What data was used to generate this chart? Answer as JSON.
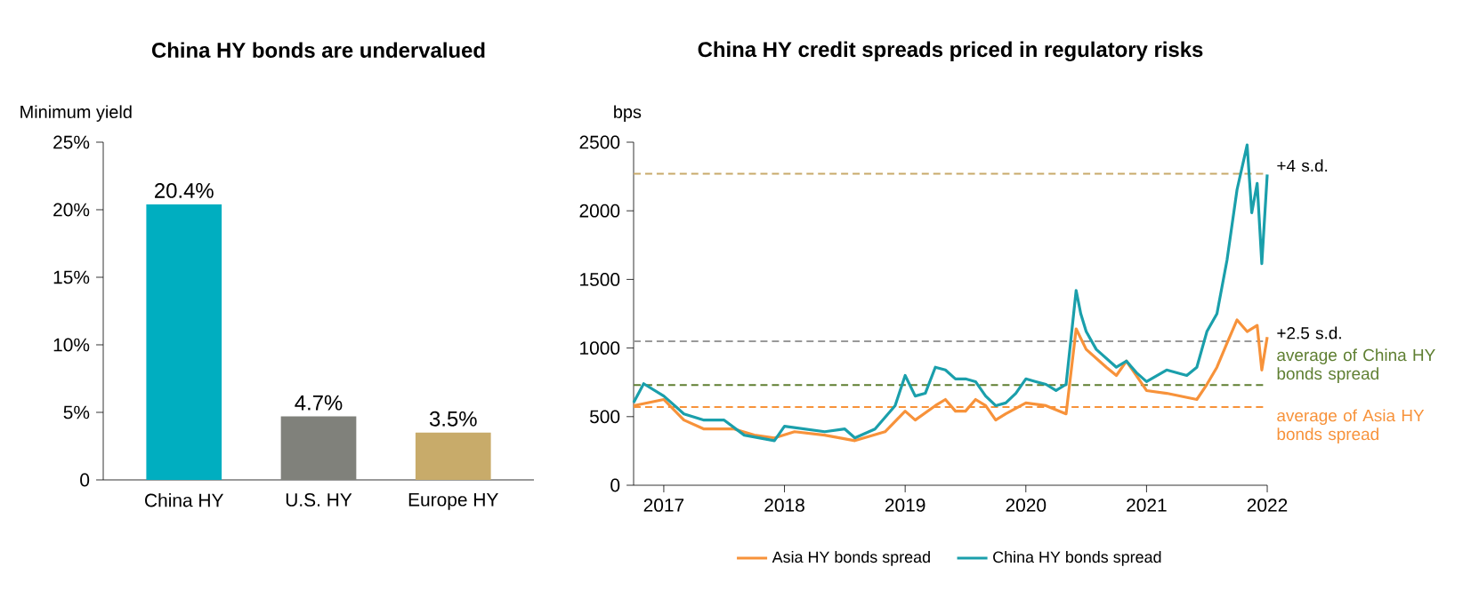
{
  "chart_data": [
    {
      "type": "bar",
      "title": "China HY bonds are undervalued",
      "ylabel": "Minimum yield",
      "categories": [
        "China HY",
        "U.S. HY",
        "Europe HY"
      ],
      "values": [
        20.4,
        4.7,
        3.5
      ],
      "colors": [
        "#00aec0",
        "#80817b",
        "#c8ab6a"
      ],
      "value_labels": [
        "20.4%",
        "4.7%",
        "3.5%"
      ],
      "ylim": [
        0,
        25
      ],
      "yticks": [
        0,
        {
          "value": 5,
          "label": "5%"
        },
        {
          "value": 10,
          "label": "10%"
        },
        {
          "value": 15,
          "label": "15%"
        },
        {
          "value": 20,
          "label": "20%"
        },
        {
          "value": 25,
          "label": "25%"
        }
      ]
    },
    {
      "type": "line",
      "title": "China HY credit spreads priced in regulatory risks",
      "ylabel": "bps",
      "xlim": [
        "2016-10",
        "2022-01"
      ],
      "xticks": [
        "2017",
        "2018",
        "2019",
        "2020",
        "2021",
        "2022"
      ],
      "ylim": [
        0,
        2500
      ],
      "yticks": [
        0,
        500,
        1000,
        1500,
        2000,
        2500
      ],
      "legend": "bottom",
      "series": [
        {
          "name": "Asia HY bonds spread",
          "color": "#f7923a",
          "x": [
            "2016-10",
            "2017-01",
            "2017-03",
            "2017-05",
            "2017-08",
            "2017-10",
            "2017-12",
            "2018-02",
            "2018-05",
            "2018-08",
            "2018-11",
            "2019-01",
            "2019-02",
            "2019-04",
            "2019-05",
            "2019-06",
            "2019-07",
            "2019-08",
            "2019-09",
            "2019-10",
            "2019-11",
            "2020-01",
            "2020-03",
            "2020-05",
            "2020-06-01",
            "2020-07",
            "2020-09",
            "2020-10",
            "2020-11",
            "2021-01",
            "2021-03",
            "2021-06",
            "2021-07",
            "2021-08",
            "2021-09",
            "2021-10",
            "2021-11",
            "2021-12-01",
            "2021-12-15",
            "2022-01"
          ],
          "values": [
            580,
            625,
            475,
            410,
            410,
            365,
            345,
            390,
            365,
            325,
            390,
            540,
            475,
            580,
            625,
            540,
            540,
            625,
            580,
            475,
            520,
            600,
            580,
            520,
            1140,
            990,
            860,
            800,
            905,
            690,
            670,
            625,
            735,
            860,
            1035,
            1205,
            1120,
            1165,
            840,
            1080
          ]
        },
        {
          "name": "China HY bonds spread",
          "color": "#1a9fab",
          "x": [
            "2016-10",
            "2016-11",
            "2017-01",
            "2017-03",
            "2017-05",
            "2017-07",
            "2017-09",
            "2017-12",
            "2018-01",
            "2018-03",
            "2018-05",
            "2018-07",
            "2018-08",
            "2018-10",
            "2018-12",
            "2019-01",
            "2019-02",
            "2019-03",
            "2019-04",
            "2019-05",
            "2019-06",
            "2019-07",
            "2019-08",
            "2019-09",
            "2019-10",
            "2019-11",
            "2019-12",
            "2020-01",
            "2020-02",
            "2020-03",
            "2020-04",
            "2020-05",
            "2020-06-01",
            "2020-06-15",
            "2020-07",
            "2020-08",
            "2020-10",
            "2020-11",
            "2020-12",
            "2021-01",
            "2021-03",
            "2021-05",
            "2021-06",
            "2021-07",
            "2021-08",
            "2021-09",
            "2021-10",
            "2021-11-01",
            "2021-11-15",
            "2021-12-01",
            "2021-12-15",
            "2022-01"
          ],
          "values": [
            603,
            740,
            650,
            520,
            475,
            475,
            365,
            325,
            430,
            410,
            390,
            410,
            345,
            410,
            580,
            800,
            650,
            670,
            860,
            840,
            775,
            775,
            755,
            650,
            580,
            600,
            670,
            775,
            755,
            735,
            690,
            735,
            1420,
            1250,
            1120,
            990,
            860,
            905,
            820,
            755,
            840,
            800,
            860,
            1120,
            1250,
            1640,
            2155,
            2480,
            1985,
            2200,
            1615,
            2265
          ]
        }
      ],
      "ref_lines": [
        {
          "axis": "y",
          "value": 2270,
          "label": "+4 s.d.",
          "color": "#c8a96a",
          "line_style": "dashed"
        },
        {
          "axis": "y",
          "value": 1050,
          "label": "+2.5 s.d.",
          "color": "#999999",
          "line_style": "dashed"
        },
        {
          "axis": "y",
          "value": 730,
          "label": "average of China HY bonds spread",
          "color": "#5f7f32",
          "line_style": "dashed"
        },
        {
          "axis": "y",
          "value": 570,
          "label": "average of Asia HY bonds spread",
          "color": "#f7923a",
          "line_style": "dashed"
        }
      ]
    }
  ]
}
